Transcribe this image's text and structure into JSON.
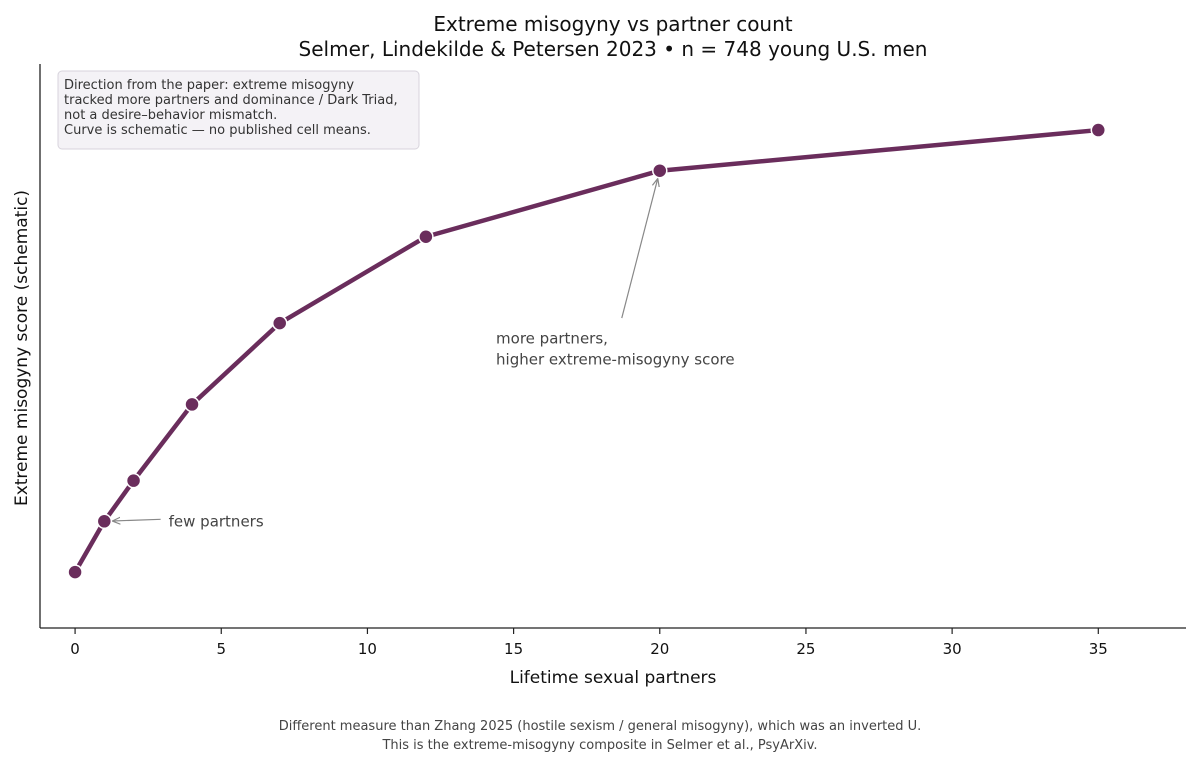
{
  "chart_data": {
    "type": "line",
    "title": "Extreme misogyny vs partner count",
    "subtitle": "Selmer, Lindekilde & Petersen 2023  •  n = 748 young U.S. men",
    "xlabel": "Lifetime sexual partners",
    "ylabel": "Extreme misogyny score (schematic)",
    "x": [
      0,
      1,
      2,
      4,
      7,
      12,
      20,
      35
    ],
    "y": [
      0.0,
      0.1,
      0.18,
      0.33,
      0.49,
      0.66,
      0.79,
      0.87
    ],
    "xlim": [
      -1.2,
      38
    ],
    "ylim": [
      -0.11,
      1.0
    ],
    "xticks": [
      0,
      5,
      10,
      15,
      20,
      25,
      30,
      35
    ],
    "y_tick_labels": false,
    "grid": false,
    "line_color": "#6a2d5c",
    "marker_color": "#6a2d5c",
    "note": [
      "Direction from the paper: extreme misogyny",
      "tracked more partners and dominance / Dark Triad,",
      "not a desire–behavior mismatch.",
      "Curve is schematic — no published cell means."
    ],
    "annotations": [
      {
        "lines": [
          "few partners"
        ],
        "target_x": 1,
        "target_y": 0.1,
        "text_x": 3.2,
        "text_y": 0.1
      },
      {
        "lines": [
          "more partners,",
          "higher extreme-misogyny score"
        ],
        "target_x": 20,
        "target_y": 0.79,
        "text_x": 14.4,
        "text_y": 0.46
      }
    ],
    "footer": [
      "Different measure than Zhang 2025 (hostile sexism / general misogyny), which was an inverted U.",
      "This is the extreme-misogyny composite in Selmer et al., PsyArXiv."
    ]
  }
}
